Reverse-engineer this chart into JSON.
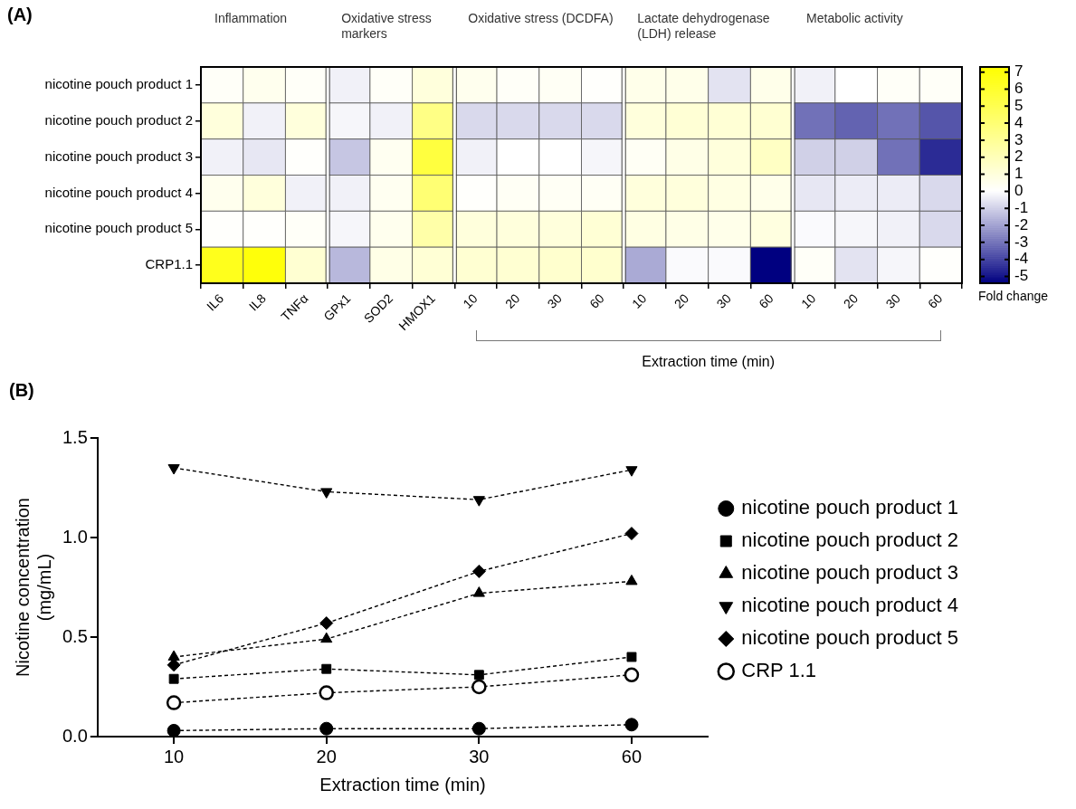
{
  "chart_data": [
    {
      "type": "heatmap",
      "annotations": [
        "(A)",
        "Inflammation",
        "Oxidative stress markers",
        "Oxidative stress (DCDFA)",
        "Lactate dehydrogenase (LDH) release",
        "Metabolic activity",
        "Extraction time (min)"
      ],
      "categories": [
        "IL6",
        "IL8",
        "TNFα",
        "GPx1",
        "SOD2",
        "HMOX1",
        "10",
        "20",
        "30",
        "60",
        "10",
        "20",
        "30",
        "60",
        "10",
        "20",
        "30",
        "60"
      ],
      "y_categories": [
        "nicotine pouch product 1",
        "nicotine pouch product 2",
        "nicotine pouch product 3",
        "nicotine pouch product 4",
        "nicotine pouch product 5",
        "CRP1.1"
      ],
      "cells": [
        [
          0.2,
          0.5,
          0.2,
          -0.3,
          0.2,
          1,
          0.5,
          0.2,
          0.3,
          0.1,
          0.6,
          0.6,
          -0.6,
          0.6,
          -0.3,
          0,
          0.2,
          0.2
        ],
        [
          1,
          -0.3,
          1,
          -0.2,
          -0.3,
          3.5,
          -0.8,
          -0.8,
          -0.8,
          -0.8,
          1,
          1.2,
          1.2,
          1.3,
          -3,
          -3.3,
          -3,
          -3.6
        ],
        [
          -0.3,
          -0.5,
          0.1,
          -1.2,
          0.4,
          5.5,
          -0.3,
          0,
          0,
          -0.2,
          0.3,
          0.7,
          1,
          1.7,
          -1,
          -1,
          -3,
          -4.5
        ],
        [
          0.5,
          1,
          -0.3,
          -0.3,
          0.4,
          4,
          0.1,
          0.3,
          0.3,
          0.3,
          1,
          1,
          0.8,
          0.6,
          -0.5,
          -0.4,
          -0.4,
          -0.8
        ],
        [
          0.1,
          0.1,
          0.2,
          -0.2,
          0.5,
          2.5,
          1,
          1,
          1,
          1.2,
          0.8,
          0.7,
          0.6,
          0.9,
          -0.1,
          -0.2,
          -0.3,
          -0.8
        ],
        [
          6.5,
          7,
          1.3,
          -1.5,
          0.7,
          1.2,
          1.3,
          1.3,
          1.4,
          1.4,
          -1.8,
          -0.1,
          -0.1,
          -5.4,
          0.2,
          -0.6,
          -0.2,
          0.1
        ]
      ],
      "clim": [
        -5.4,
        7.3
      ],
      "cticks": [
        -5,
        -4,
        -3,
        -2,
        -1,
        0,
        1,
        2,
        3,
        4,
        5,
        6,
        7
      ],
      "clabel": "Fold change"
    },
    {
      "type": "line",
      "title": "(B)",
      "xlabel": "Extraction time (min)",
      "ylabel": "Nicotine concentration (mg/mL)",
      "categories": [
        "10",
        "20",
        "30",
        "60"
      ],
      "series": [
        {
          "name": "nicotine pouch product 1",
          "color": "#000000",
          "marker": "circle",
          "values": [
            0.03,
            0.04,
            0.04,
            0.06
          ]
        },
        {
          "name": "nicotine pouch product 2",
          "color": "#000000",
          "marker": "square",
          "values": [
            0.29,
            0.34,
            0.31,
            0.4
          ]
        },
        {
          "name": "nicotine pouch product 3",
          "color": "#000000",
          "marker": "triangle",
          "values": [
            0.4,
            0.49,
            0.72,
            0.78
          ]
        },
        {
          "name": "nicotine pouch product 4",
          "color": "#000000",
          "marker": "triangle-down",
          "values": [
            1.35,
            1.23,
            1.19,
            1.34
          ]
        },
        {
          "name": "nicotine pouch product 5",
          "color": "#000000",
          "marker": "diamond",
          "values": [
            0.36,
            0.57,
            0.83,
            1.02
          ]
        },
        {
          "name": "CRP 1.1",
          "color": "#000000",
          "marker": "circle-open",
          "values": [
            0.17,
            0.22,
            0.25,
            0.31
          ]
        }
      ],
      "ylim": [
        0,
        1.5
      ],
      "yticks": [
        {
          "value": 0,
          "label": "0.0"
        },
        {
          "value": 0.5,
          "label": "0.5"
        },
        {
          "value": 1,
          "label": "1.0"
        },
        {
          "value": 1.5,
          "label": "1.5"
        }
      ],
      "grid": false,
      "legend": "right",
      "line_style": "dashed"
    }
  ]
}
